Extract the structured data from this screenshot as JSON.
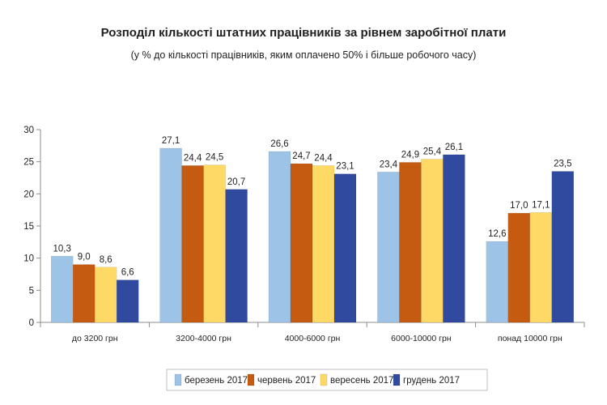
{
  "chart_data": {
    "type": "bar",
    "title": "Розподіл кількості штатних працівників за рівнем заробітної плати",
    "subtitle": "(у % до кількості працівників, яким оплачено 50% і більше робочого часу)",
    "categories": [
      "до 3200 грн",
      "3200-4000 грн",
      "4000-6000 грн",
      "6000-10000 грн",
      "понад 10000 грн"
    ],
    "series": [
      {
        "name": "березень 2017",
        "color": "#9dc3e6",
        "values": [
          10.3,
          27.1,
          26.6,
          23.4,
          12.6
        ],
        "labels": [
          "10,3",
          "27,1",
          "26,6",
          "23,4",
          "12,6"
        ]
      },
      {
        "name": "червень 2017",
        "color": "#c55a11",
        "values": [
          9.0,
          24.4,
          24.7,
          24.9,
          17.0
        ],
        "labels": [
          "9,0",
          "24,4",
          "24,7",
          "24,9",
          "17,0"
        ]
      },
      {
        "name": "вересень 2017",
        "color": "#ffd966",
        "values": [
          8.6,
          24.5,
          24.4,
          25.4,
          17.1
        ],
        "labels": [
          "8,6",
          "24,5",
          "24,4",
          "25,4",
          "17,1"
        ]
      },
      {
        "name": "грудень 2017",
        "color": "#2f4a9e",
        "values": [
          6.6,
          20.7,
          23.1,
          26.1,
          23.5
        ],
        "labels": [
          "6,6",
          "20,7",
          "23,1",
          "26,1",
          "23,5"
        ]
      }
    ],
    "ylim": [
      0,
      30
    ],
    "yticks": [
      "0",
      "5",
      "10",
      "15",
      "20",
      "25",
      "30"
    ],
    "ytick_values": [
      0,
      5,
      10,
      15,
      20,
      25,
      30
    ],
    "legend_position": "bottom",
    "grid": false
  }
}
